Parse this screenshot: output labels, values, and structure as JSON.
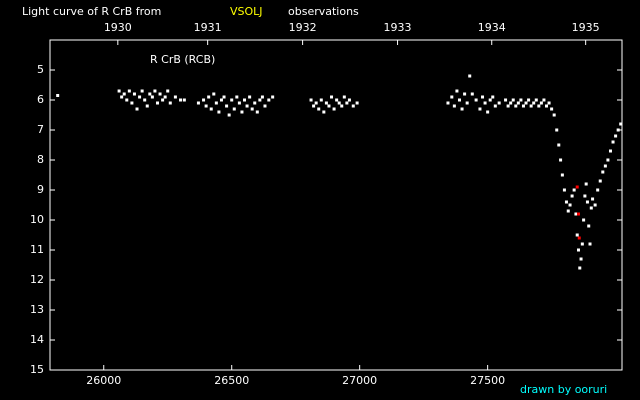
{
  "chart_data": {
    "type": "scatter",
    "title_parts": [
      "Light curve of R CrB from",
      "VSOLJ",
      "observations"
    ],
    "title_colors": [
      "#ffffff",
      "#ffff00",
      "#ffffff"
    ],
    "annotation": "R CrB (RCB)",
    "credit": "drawn by ooruri",
    "credit_color": "#00ffff",
    "xlim": [
      25790,
      28025
    ],
    "xticks": [
      26000,
      26500,
      27000,
      27500
    ],
    "x2ticks": [
      {
        "value": 26055,
        "label": "1930"
      },
      {
        "value": 26406,
        "label": "1931"
      },
      {
        "value": 26777,
        "label": "1932"
      },
      {
        "value": 27148,
        "label": "1933"
      },
      {
        "value": 27516,
        "label": "1934"
      },
      {
        "value": 27883,
        "label": "1935"
      }
    ],
    "ylim": [
      15,
      4
    ],
    "yticks": [
      5,
      6,
      7,
      8,
      9,
      10,
      11,
      12,
      13,
      14,
      15
    ],
    "series": [
      {
        "color": "#ffffff",
        "x": [
          25820,
          26060,
          26070,
          26080,
          26090,
          26100,
          26110,
          26120,
          26130,
          26140,
          26150,
          26160,
          26170,
          26180,
          26190,
          26200,
          26210,
          26220,
          26230,
          26240,
          26250,
          26260,
          26280,
          26300,
          26315,
          26370,
          26390,
          26400,
          26410,
          26420,
          26430,
          26440,
          26450,
          26460,
          26470,
          26480,
          26490,
          26500,
          26510,
          26520,
          26530,
          26540,
          26550,
          26560,
          26570,
          26580,
          26590,
          26600,
          26610,
          26620,
          26630,
          26645,
          26660,
          26810,
          26820,
          26830,
          26840,
          26850,
          26860,
          26870,
          26880,
          26890,
          26900,
          26910,
          26920,
          26930,
          26940,
          26950,
          26960,
          26975,
          26990,
          27345,
          27360,
          27370,
          27380,
          27390,
          27400,
          27410,
          27420,
          27430,
          27440,
          27455,
          27470,
          27480,
          27490,
          27500,
          27510,
          27520,
          27530,
          27545,
          27570,
          27580,
          27590,
          27600,
          27610,
          27620,
          27630,
          27640,
          27650,
          27660,
          27670,
          27680,
          27690,
          27700,
          27710,
          27720,
          27730,
          27740,
          27750,
          27760,
          27770,
          27778,
          27785,
          27792,
          27800,
          27808,
          27815,
          27822,
          27830,
          27838,
          27845,
          27850,
          27855,
          27860,
          27865,
          27870,
          27875,
          27880,
          27885,
          27890,
          27895,
          27900,
          27905,
          27910,
          27920,
          27930,
          27940,
          27950,
          27960,
          27970,
          27980,
          27990,
          28000,
          28010,
          28020
        ],
        "values": [
          5.85,
          5.7,
          5.9,
          5.8,
          6.0,
          5.7,
          6.1,
          5.8,
          6.3,
          5.9,
          5.7,
          6.0,
          6.2,
          5.8,
          5.9,
          5.7,
          6.1,
          5.8,
          6.0,
          5.9,
          5.7,
          6.1,
          5.9,
          6.0,
          6.0,
          6.1,
          6.0,
          6.2,
          5.9,
          6.3,
          5.8,
          6.1,
          6.4,
          6.0,
          5.9,
          6.2,
          6.5,
          6.0,
          6.3,
          5.9,
          6.1,
          6.4,
          6.0,
          6.2,
          5.9,
          6.3,
          6.1,
          6.4,
          6.0,
          5.9,
          6.2,
          6.0,
          5.9,
          6.0,
          6.2,
          6.1,
          6.3,
          6.0,
          6.4,
          6.1,
          6.2,
          5.9,
          6.3,
          6.0,
          6.1,
          6.2,
          5.9,
          6.1,
          6.0,
          6.2,
          6.1,
          6.1,
          5.9,
          6.2,
          5.7,
          6.0,
          6.3,
          5.8,
          6.1,
          5.2,
          5.8,
          6.0,
          6.3,
          5.9,
          6.1,
          6.4,
          6.0,
          5.9,
          6.2,
          6.1,
          6.0,
          6.2,
          6.1,
          6.0,
          6.2,
          6.1,
          6.0,
          6.2,
          6.1,
          6.0,
          6.2,
          6.1,
          6.0,
          6.2,
          6.1,
          6.0,
          6.2,
          6.1,
          6.3,
          6.5,
          7.0,
          7.5,
          8.0,
          8.5,
          9.0,
          9.4,
          9.7,
          9.5,
          9.2,
          9.0,
          9.8,
          10.5,
          11.0,
          11.6,
          11.3,
          10.8,
          10.0,
          9.2,
          8.8,
          9.4,
          10.2,
          10.8,
          9.6,
          9.3,
          9.5,
          9.0,
          8.7,
          8.4,
          8.2,
          8.0,
          7.7,
          7.4,
          7.2,
          7.0,
          6.8
        ]
      },
      {
        "color": "#ff0000",
        "x": [
          27850,
          27855,
          27858
        ],
        "values": [
          8.9,
          9.8,
          10.6
        ]
      }
    ]
  }
}
